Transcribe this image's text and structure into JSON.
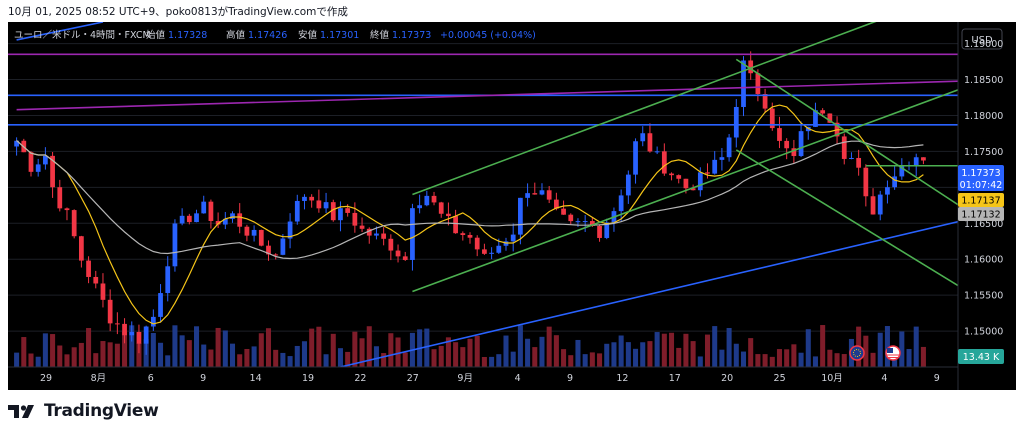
{
  "header": {
    "credit": "10月 01, 2025 08:52 UTC+9、poko0813がTradingView.comで作成"
  },
  "legend": {
    "symbol": "ユーロ／米ドル・4時間・FXCM",
    "open_label": "始値",
    "open": "1.17328",
    "high_label": "高値",
    "high": "1.17426",
    "low_label": "安値",
    "low": "1.17301",
    "close_label": "終値",
    "close": "1.17373",
    "change": "+0.00045 (+0.04%)"
  },
  "currency_button": "USD",
  "price_badges": {
    "last": "1.17373",
    "countdown": "01:07:42",
    "ma_fast": "1.17137",
    "ma_slow": "1.17132"
  },
  "volume_badge": "13.43 K",
  "brand": {
    "name": "TradingView"
  },
  "colors": {
    "background": "#000000",
    "up": "#2962ff",
    "down": "#f23645",
    "ma_fast": "#f5c518",
    "ma_slow": "#b5b5b5",
    "channel": "#4caf50",
    "horizontal": "#2962ff",
    "trend": "#9c27b0"
  },
  "chart_data": {
    "type": "candlestick",
    "symbol": "EUR/USD",
    "timeframe": "4h",
    "ylim": [
      1.145,
      1.193
    ],
    "y_ticks": [
      "1.19000",
      "1.18500",
      "1.18000",
      "1.17500",
      "1.17000",
      "1.16500",
      "1.16000",
      "1.15500",
      "1.15000"
    ],
    "x_ticks": [
      "29",
      "8月",
      "6",
      "9",
      "14",
      "19",
      "22",
      "27",
      "9月",
      "4",
      "9",
      "12",
      "17",
      "20",
      "25",
      "10月",
      "4",
      "9"
    ],
    "last_close": 1.17373,
    "key_levels": [
      1.1885,
      1.1828,
      1.1787
    ],
    "path": [
      [
        0,
        1.1765
      ],
      [
        2,
        1.173
      ],
      [
        4,
        1.1745
      ],
      [
        5,
        1.17
      ],
      [
        7,
        1.166
      ],
      [
        9,
        1.16
      ],
      [
        11,
        1.156
      ],
      [
        13,
        1.152
      ],
      [
        15,
        1.15
      ],
      [
        17,
        1.149
      ],
      [
        19,
        1.152
      ],
      [
        20,
        1.156
      ],
      [
        21,
        1.16
      ],
      [
        22,
        1.164
      ],
      [
        24,
        1.166
      ],
      [
        26,
        1.167
      ],
      [
        28,
        1.165
      ],
      [
        30,
        1.166
      ],
      [
        32,
        1.164
      ],
      [
        34,
        1.162
      ],
      [
        36,
        1.1605
      ],
      [
        38,
        1.166
      ],
      [
        40,
        1.169
      ],
      [
        42,
        1.168
      ],
      [
        44,
        1.166
      ],
      [
        46,
        1.1665
      ],
      [
        48,
        1.164
      ],
      [
        50,
        1.163
      ],
      [
        52,
        1.162
      ],
      [
        54,
        1.16
      ],
      [
        55,
        1.168
      ],
      [
        57,
        1.169
      ],
      [
        59,
        1.166
      ],
      [
        61,
        1.164
      ],
      [
        63,
        1.163
      ],
      [
        65,
        1.16
      ],
      [
        67,
        1.162
      ],
      [
        69,
        1.164
      ],
      [
        70,
        1.168
      ],
      [
        71,
        1.17
      ],
      [
        73,
        1.169
      ],
      [
        75,
        1.166
      ],
      [
        77,
        1.1645
      ],
      [
        79,
        1.165
      ],
      [
        81,
        1.164
      ],
      [
        83,
        1.167
      ],
      [
        85,
        1.172
      ],
      [
        86,
        1.176
      ],
      [
        87,
        1.177
      ],
      [
        89,
        1.174
      ],
      [
        91,
        1.172
      ],
      [
        93,
        1.17
      ],
      [
        95,
        1.171
      ],
      [
        97,
        1.173
      ],
      [
        98,
        1.174
      ],
      [
        99,
        1.177
      ],
      [
        100,
        1.182
      ],
      [
        101,
        1.187
      ],
      [
        102,
        1.185
      ],
      [
        104,
        1.182
      ],
      [
        105,
        1.179
      ],
      [
        106,
        1.176
      ],
      [
        108,
        1.174
      ],
      [
        109,
        1.177
      ],
      [
        110,
        1.179
      ],
      [
        112,
        1.181
      ],
      [
        113,
        1.18
      ],
      [
        114,
        1.178
      ],
      [
        115,
        1.175
      ],
      [
        116,
        1.174
      ],
      [
        117,
        1.172
      ],
      [
        118,
        1.168
      ],
      [
        119,
        1.167
      ],
      [
        120,
        1.169
      ],
      [
        121,
        1.171
      ],
      [
        122,
        1.172
      ],
      [
        123,
        1.173
      ],
      [
        124,
        1.174
      ],
      [
        125,
        1.1745
      ],
      [
        126,
        1.1737
      ]
    ],
    "moving_averages": [
      {
        "name": "MA fast",
        "last": 1.17137
      },
      {
        "name": "MA slow",
        "last": 1.17132
      }
    ]
  }
}
